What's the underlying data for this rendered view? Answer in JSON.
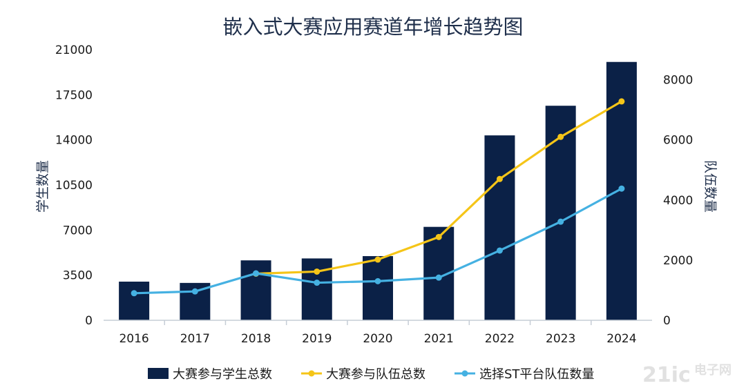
{
  "chart_data": {
    "type": "bar",
    "title": "嵌入式大赛应用赛道年增长趋势图",
    "categories": [
      "2016",
      "2017",
      "2018",
      "2019",
      "2020",
      "2021",
      "2022",
      "2023",
      "2024"
    ],
    "y_left": {
      "label": "学生数量",
      "min": 0,
      "max": 21000,
      "ticks": [
        "0",
        "3500",
        "7000",
        "10500",
        "14000",
        "17500",
        "21000"
      ]
    },
    "y_right": {
      "label": "队伍数量",
      "min": 0,
      "max": 9000,
      "ticks": [
        "0",
        "2000",
        "4000",
        "6000",
        "8000"
      ]
    },
    "series": [
      {
        "name": "大赛参与学生总数",
        "type": "bar",
        "axis": "left",
        "color": "#0b2147",
        "values": [
          3000,
          2900,
          4650,
          4800,
          4980,
          7250,
          14350,
          16650,
          20050
        ]
      },
      {
        "name": "大赛参与队伍总数",
        "type": "line",
        "axis": "right",
        "color": "#f5c518",
        "values": [
          null,
          null,
          1550,
          1620,
          2020,
          2770,
          4700,
          6100,
          7280
        ]
      },
      {
        "name": "选择ST平台队伍数量",
        "type": "line",
        "axis": "right",
        "color": "#45b1e2",
        "values": [
          900,
          960,
          1560,
          1250,
          1300,
          1420,
          2320,
          3280,
          4380
        ]
      }
    ],
    "legend_position": "bottom",
    "grid": false
  },
  "watermark": {
    "text": "21ic",
    "subtext": "电子网"
  }
}
